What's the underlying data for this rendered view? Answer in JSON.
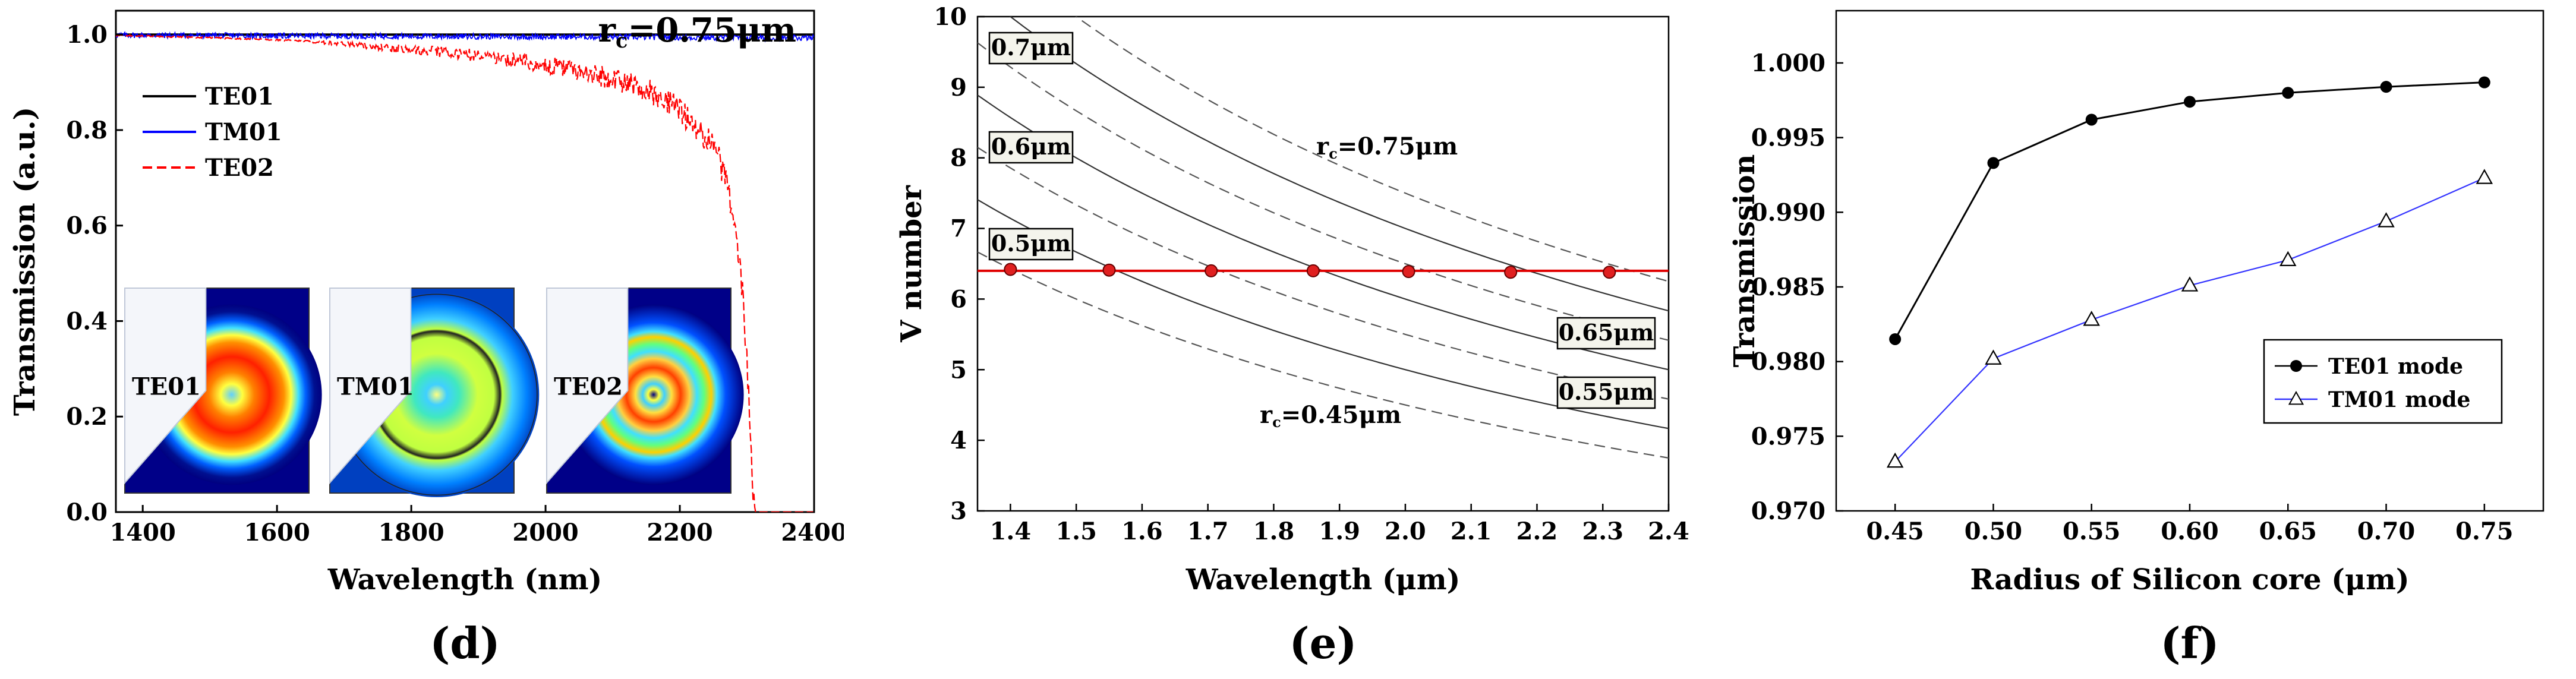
{
  "chart_data": [
    {
      "type": "line",
      "panel_label": "(d)",
      "title": "rc=0.75μm",
      "title_main": "r",
      "title_sub": "c",
      "title_rest": "=0.75μm",
      "xlabel": "Wavelength (nm)",
      "ylabel": "Transmission (a.u.)",
      "xlim": [
        1360,
        2400
      ],
      "ylim": [
        0,
        1.05
      ],
      "xticks": [
        "1400",
        "1600",
        "1800",
        "2000",
        "2200",
        "2400"
      ],
      "xtick_values": [
        1400,
        1600,
        1800,
        2000,
        2200,
        2400
      ],
      "yticks": [
        "0.0",
        "0.2",
        "0.4",
        "0.6",
        "0.8",
        "1.0"
      ],
      "ytick_values": [
        0,
        0.2,
        0.4,
        0.6,
        0.8,
        1.0
      ],
      "legend_position": "top-left",
      "series": [
        {
          "name": "TE01",
          "color": "#000000",
          "style": "solid",
          "x": [
            1360,
            2400
          ],
          "y": [
            1.0,
            1.0
          ]
        },
        {
          "name": "TM01",
          "color": "#0000ff",
          "style": "noisy-solid",
          "x": [
            1360,
            1500,
            1700,
            1900,
            2100,
            2300,
            2400
          ],
          "y": [
            0.999,
            0.998,
            0.997,
            0.996,
            0.995,
            0.993,
            0.993
          ],
          "noise": 0.012
        },
        {
          "name": "TE02",
          "color": "#ff0000",
          "style": "dashed-noisy",
          "x": [
            1360,
            1500,
            1600,
            1700,
            1800,
            1900,
            2000,
            2100,
            2150,
            2200,
            2250,
            2270,
            2290,
            2300,
            2308,
            2312,
            2320,
            2400
          ],
          "y": [
            1.0,
            0.995,
            0.99,
            0.985,
            0.978,
            0.97,
            0.955,
            0.93,
            0.91,
            0.87,
            0.8,
            0.72,
            0.55,
            0.35,
            0.1,
            0.0,
            0.0,
            0.0
          ],
          "noise": 0.06
        }
      ],
      "insets": [
        {
          "label": "TE01",
          "mode": "TE01"
        },
        {
          "label": "TM01",
          "mode": "TM01"
        },
        {
          "label": "TE02",
          "mode": "TE02"
        }
      ]
    },
    {
      "type": "line",
      "panel_label": "(e)",
      "xlabel": "Wavelength (μm)",
      "ylabel": "V number",
      "xlim": [
        1.35,
        2.4
      ],
      "ylim": [
        3,
        10
      ],
      "xticks": [
        "1.4",
        "1.5",
        "1.6",
        "1.7",
        "1.8",
        "1.9",
        "2.0",
        "2.1",
        "2.2",
        "2.3",
        "2.4"
      ],
      "xtick_values": [
        1.4,
        1.5,
        1.6,
        1.7,
        1.8,
        1.9,
        2.0,
        2.1,
        2.2,
        2.3,
        2.4
      ],
      "yticks": [
        "3",
        "4",
        "5",
        "6",
        "7",
        "8",
        "9",
        "10"
      ],
      "ytick_values": [
        3,
        4,
        5,
        6,
        7,
        8,
        9,
        10
      ],
      "curves": [
        {
          "radius": 0.45,
          "style": "dashed"
        },
        {
          "radius": 0.5,
          "style": "solid"
        },
        {
          "radius": 0.55,
          "style": "dashed"
        },
        {
          "radius": 0.6,
          "style": "solid"
        },
        {
          "radius": 0.65,
          "style": "dashed"
        },
        {
          "radius": 0.7,
          "style": "solid"
        },
        {
          "radius": 0.75,
          "style": "dashed"
        }
      ],
      "v_coefficient": 20.0,
      "cutoff_line": {
        "y": 6.4,
        "color": "#e00000"
      },
      "cutoff_points": {
        "x": [
          1.4,
          1.55,
          1.705,
          1.86,
          2.005,
          2.16,
          2.31
        ],
        "y": [
          6.42,
          6.41,
          6.4,
          6.4,
          6.39,
          6.38,
          6.38
        ]
      },
      "boxed_labels": [
        "0.7μm",
        "0.6μm",
        "0.5μm",
        "0.65μm",
        "0.55μm"
      ],
      "text_labels": [
        {
          "main": "r",
          "sub": "c",
          "rest": "=0.75μm"
        },
        {
          "main": "r",
          "sub": "c",
          "rest": "=0.45μm"
        }
      ]
    },
    {
      "type": "line",
      "panel_label": "(f)",
      "xlabel": "Radius of Silicon core (μm)",
      "ylabel": "Transmission",
      "xlim": [
        0.42,
        0.78
      ],
      "ylim": [
        0.97,
        1.0035
      ],
      "categories": [
        "0.45",
        "0.50",
        "0.55",
        "0.60",
        "0.65",
        "0.70",
        "0.75"
      ],
      "x": [
        0.45,
        0.5,
        0.55,
        0.6,
        0.65,
        0.7,
        0.75
      ],
      "yticks": [
        "0.970",
        "0.975",
        "0.980",
        "0.985",
        "0.990",
        "0.995",
        "1.000"
      ],
      "ytick_values": [
        0.97,
        0.975,
        0.98,
        0.985,
        0.99,
        0.995,
        1.0
      ],
      "legend_position": "bottom-right",
      "series": [
        {
          "name": "TE01 mode",
          "color": "#000000",
          "marker": "filled-circle",
          "values": [
            0.9815,
            0.9933,
            0.9962,
            0.9974,
            0.998,
            0.9984,
            0.9987
          ]
        },
        {
          "name": "TM01 mode",
          "color": "#3333ff",
          "marker": "open-triangle",
          "values": [
            0.9733,
            0.9802,
            0.9828,
            0.9851,
            0.9868,
            0.9894,
            0.9923
          ]
        }
      ]
    }
  ]
}
